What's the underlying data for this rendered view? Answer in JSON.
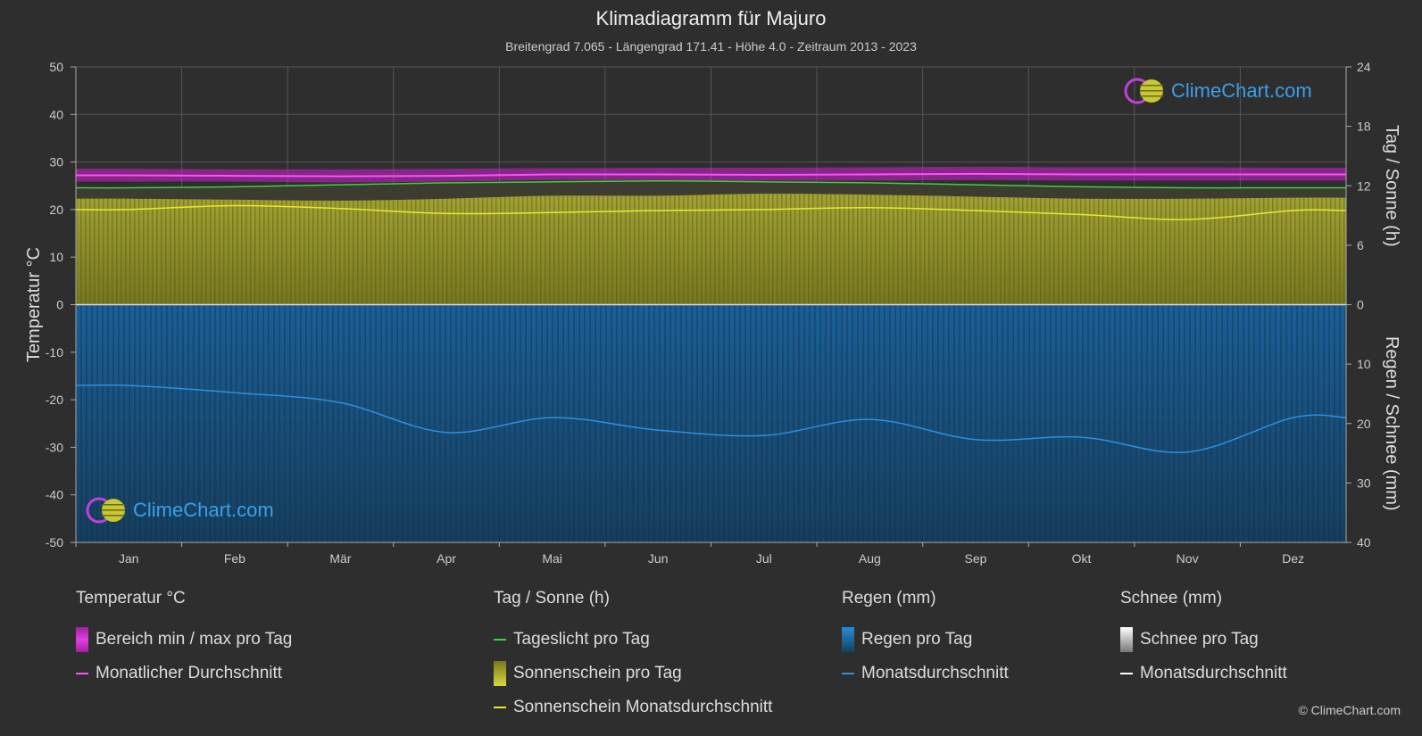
{
  "title": "Klimadiagramm für Majuro",
  "subtitle": "Breitengrad 7.065 - Längengrad 171.41 - Höhe 4.0 - Zeitraum 2013 - 2023",
  "logo_text": "ClimeChart.com",
  "copyright": "© ClimeChart.com",
  "legend": {
    "temperature": {
      "header": "Temperatur °C",
      "range_label": "Bereich min / max pro Tag",
      "avg_label": "Monatlicher Durchschnitt"
    },
    "daylight": {
      "header": "Tag / Sonne (h)",
      "daylight_label": "Tageslicht pro Tag",
      "sunshine_label": "Sonnenschein pro Tag",
      "sunshine_avg_label": "Sonnenschein Monatsdurchschnitt"
    },
    "rain": {
      "header": "Regen (mm)",
      "rain_label": "Regen pro Tag",
      "avg_label": "Monatsdurchschnitt"
    },
    "snow": {
      "header": "Schnee (mm)",
      "snow_label": "Schnee pro Tag",
      "avg_label": "Monatsdurchschnitt"
    }
  },
  "colors": {
    "temp_range": "#d020d0",
    "temp_avg": "#ff50ff",
    "daylight": "#40d040",
    "sunshine_fill": "#8c8c2a",
    "sunshine_avg": "#e8e830",
    "rain_fill": "#1c5f96",
    "rain_avg": "#2e8fe0",
    "snow": "#ffffff",
    "grid": "#666666"
  },
  "chart_data": {
    "type": "line",
    "categories": [
      "Jan",
      "Feb",
      "Mär",
      "Apr",
      "Mai",
      "Jun",
      "Jul",
      "Aug",
      "Sep",
      "Okt",
      "Nov",
      "Dez"
    ],
    "ylabel_left": "Temperatur °C",
    "ylabel_right_top": "Tag / Sonne (h)",
    "ylabel_right_bottom": "Regen / Schnee (mm)",
    "ylim_left": [
      -50,
      50
    ],
    "left_ticks": [
      50,
      40,
      30,
      20,
      10,
      0,
      -10,
      -20,
      -30,
      -40,
      -50
    ],
    "right_ticks_top": [
      24,
      18,
      12,
      6,
      0
    ],
    "right_ticks_bottom": [
      10,
      20,
      30,
      40
    ],
    "sun_hours_max": 24,
    "rain_mm_max": 40,
    "grid": true,
    "series": [
      {
        "name": "Monatlicher Durchschnitt",
        "unit": "°C",
        "values": [
          27.2,
          27.1,
          27.0,
          27.1,
          27.4,
          27.4,
          27.3,
          27.4,
          27.5,
          27.4,
          27.4,
          27.4
        ]
      },
      {
        "name": "Bereich min / max pro Tag",
        "unit": "°C",
        "min": [
          25.9,
          25.9,
          25.7,
          25.9,
          26.2,
          26.2,
          26.1,
          26.1,
          26.2,
          26.1,
          26.1,
          26.1
        ],
        "max": [
          28.6,
          28.5,
          28.5,
          28.6,
          28.7,
          28.8,
          28.8,
          28.9,
          29.0,
          28.9,
          28.9,
          28.8
        ]
      },
      {
        "name": "Tageslicht pro Tag",
        "unit": "h",
        "values": [
          11.8,
          11.9,
          12.1,
          12.3,
          12.4,
          12.5,
          12.4,
          12.3,
          12.1,
          11.9,
          11.8,
          11.8
        ]
      },
      {
        "name": "Sonnenschein pro Tag",
        "unit": "h",
        "values": [
          10.7,
          10.6,
          10.5,
          10.7,
          11.0,
          11.0,
          11.2,
          11.1,
          10.9,
          10.7,
          10.7,
          10.8
        ]
      },
      {
        "name": "Sonnenschein Monatsdurchschnitt",
        "unit": "h",
        "values": [
          9.6,
          10.0,
          9.7,
          9.2,
          9.3,
          9.5,
          9.6,
          9.8,
          9.5,
          9.1,
          8.6,
          9.5
        ]
      },
      {
        "name": "Monatsdurchschnitt (Regen)",
        "unit": "mm",
        "values": [
          13.6,
          14.8,
          16.5,
          21.5,
          19.0,
          21.1,
          22.0,
          19.3,
          22.7,
          22.3,
          24.8,
          19.0
        ]
      },
      {
        "name": "Monatsdurchschnitt (Schnee)",
        "unit": "mm",
        "values": [
          0,
          0,
          0,
          0,
          0,
          0,
          0,
          0,
          0,
          0,
          0,
          0
        ]
      }
    ]
  }
}
